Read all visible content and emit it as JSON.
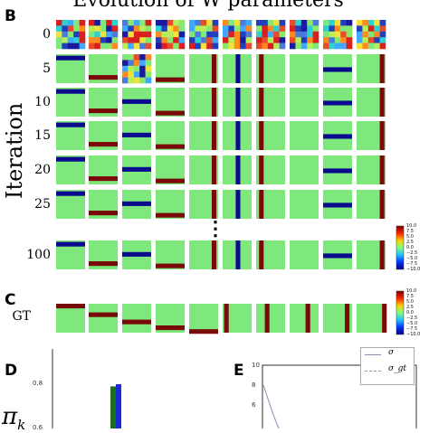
{
  "figure": {
    "title": "Evolution of W parameters",
    "ylabel": "Iteration",
    "panel_b": "B",
    "panel_c": "C",
    "panel_d": "D",
    "panel_e": "E",
    "ellipsis": "⋮",
    "gt_label": "GT",
    "pi_label": "π",
    "pi_sub": "k"
  },
  "iterations": [
    "0",
    "5",
    "10",
    "15",
    "20",
    "25",
    "100"
  ],
  "colorbar": {
    "ticks": [
      "10.0",
      "7.5",
      "5.0",
      "2.5",
      "0.0",
      "−2.5",
      "−5.0",
      "−7.5",
      "−10.0"
    ]
  },
  "chart_data": [
    {
      "type": "bar",
      "title": "",
      "yticks": [
        "0.8",
        "0.6"
      ],
      "series": [
        {
          "color": "#1c6e1c",
          "values": [
            0.79
          ]
        },
        {
          "color": "#1a2bd6",
          "values": [
            0.8
          ]
        }
      ]
    },
    {
      "type": "line",
      "title": "",
      "yticks": [
        "10",
        "8",
        "6"
      ],
      "series": [
        {
          "name": "σ",
          "style": "solid",
          "color": "#8a8ab8"
        },
        {
          "name": "σ_gt",
          "style": "dashed",
          "color": "#999999"
        }
      ]
    }
  ]
}
